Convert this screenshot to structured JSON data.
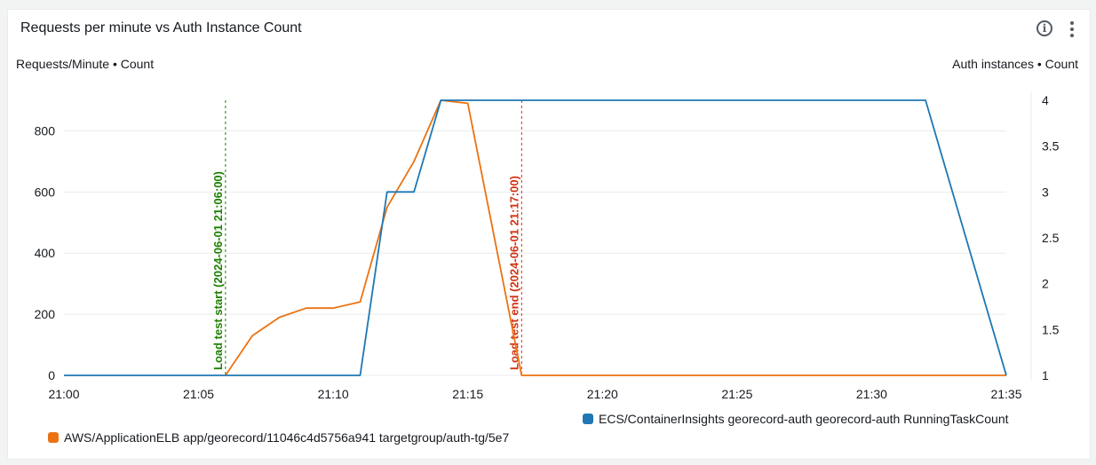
{
  "panel": {
    "title": "Requests per minute vs Auth Instance Count",
    "info_icon": "info-icon",
    "more_icon": "more-vertical-icon"
  },
  "chart_data": {
    "type": "line",
    "y_left_label": "Requests/Minute • Count",
    "y_right_label": "Auth instances • Count",
    "x_ticks": [
      "21:00",
      "21:05",
      "21:10",
      "21:15",
      "21:20",
      "21:25",
      "21:30",
      "21:35"
    ],
    "y_left_ticks": [
      0,
      200,
      400,
      600,
      800
    ],
    "y_right_ticks": [
      "1",
      "1.5",
      "2",
      "2.5",
      "3",
      "3.5",
      "4"
    ],
    "xlim": [
      "21:00",
      "21:35"
    ],
    "ylim_left": [
      0,
      900
    ],
    "ylim_right": [
      1,
      4
    ],
    "grid": true,
    "series": [
      {
        "name": "AWS/ApplicationELB app/georecord/11046c4d5756a941 targetgroup/auth-tg/5e7",
        "axis": "left",
        "color": "#ec7211",
        "x": [
          "21:06",
          "21:07",
          "21:08",
          "21:09",
          "21:10",
          "21:11",
          "21:12",
          "21:13",
          "21:14",
          "21:15",
          "21:17",
          "21:35"
        ],
        "y": [
          0,
          130,
          190,
          220,
          220,
          240,
          550,
          700,
          900,
          890,
          0,
          0
        ]
      },
      {
        "name": "ECS/ContainerInsights georecord-auth georecord-auth RunningTaskCount",
        "axis": "right",
        "color": "#1f77b4",
        "x": [
          "21:00",
          "21:11",
          "21:12",
          "21:13",
          "21:14",
          "21:32",
          "21:35"
        ],
        "y": [
          1,
          1,
          3,
          3,
          4,
          4,
          1
        ]
      }
    ],
    "annotations": [
      {
        "label": "Load test start (2024-06-01 21:06:00)",
        "x": "21:06",
        "color": "#1d8102"
      },
      {
        "label": "Load test end (2024-06-01 21:17:00)",
        "x": "21:17",
        "color": "#d13212"
      }
    ],
    "legend_position": "bottom"
  }
}
